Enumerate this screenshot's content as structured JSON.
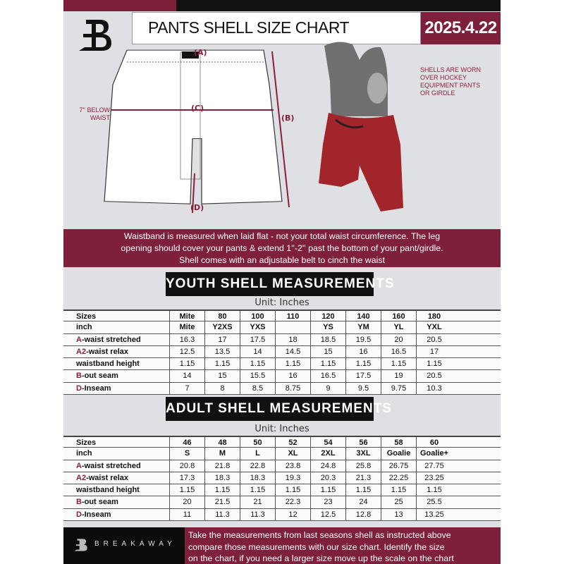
{
  "header": {
    "title": "PANTS SHELL SIZE CHART",
    "date": "2025.4.22"
  },
  "diagram": {
    "label_a": "(A)",
    "label_b": "(B)",
    "label_c": "(C)",
    "label_d": "(D)",
    "c_note_1": "7'' BELOW",
    "c_note_2": "WAIST",
    "side_note": [
      "SHELLS ARE WORN",
      "OVER HOCKEY",
      "EQUIPMENT PANTS",
      "OR GIRDLE"
    ]
  },
  "banner": [
    "Waistband is measured when laid flat - not your total waist circumference. The leg",
    "opening should cover your pants & extend 1''-2'' past the bottom of your pant/girdle.",
    "Shell comes with an adjustable belt to cinch the waist"
  ],
  "youth": {
    "heading": "YOUTH SHELL MEASUREMENTS",
    "unit": "Unit: Inches",
    "rows": [
      {
        "prefix": "",
        "label": "Sizes",
        "cells": [
          "Mite",
          "80",
          "100",
          "110",
          "120",
          "140",
          "160",
          "180"
        ]
      },
      {
        "prefix": "",
        "label": "inch",
        "cells": [
          "Mite",
          "Y2XS",
          "YXS",
          "",
          "YS",
          "YM",
          "YL",
          "YXL"
        ]
      },
      {
        "prefix": "A",
        "label": "-waist stretched",
        "cells": [
          "16.3",
          "17",
          "17.5",
          "18",
          "18.5",
          "19.5",
          "20",
          "20.5"
        ]
      },
      {
        "prefix": "A2",
        "label": "-waist relax",
        "cells": [
          "12.5",
          "13.5",
          "14",
          "14.5",
          "15",
          "16",
          "16.5",
          "17"
        ]
      },
      {
        "prefix": "",
        "label": "waistband height",
        "cells": [
          "1.15",
          "1.15",
          "1.15",
          "1.15",
          "1.15",
          "1.15",
          "1.15",
          "1.15"
        ]
      },
      {
        "prefix": "B",
        "label": "-out seam",
        "cells": [
          "14",
          "15",
          "15.5",
          "16",
          "16.5",
          "17.5",
          "19",
          "20.5"
        ]
      },
      {
        "prefix": "D",
        "label": "-Inseam",
        "cells": [
          "7",
          "8",
          "8.5",
          "8.75",
          "9",
          "9.5",
          "9.75",
          "10.3"
        ]
      }
    ]
  },
  "adult": {
    "heading": "ADULT SHELL MEASUREMENTS",
    "unit": "Unit: Inches",
    "rows": [
      {
        "prefix": "",
        "label": "Sizes",
        "cells": [
          "46",
          "48",
          "50",
          "52",
          "54",
          "56",
          "58",
          "60"
        ]
      },
      {
        "prefix": "",
        "label": "inch",
        "cells": [
          "S",
          "M",
          "L",
          "XL",
          "2XL",
          "3XL",
          "Goalie",
          "Goalie+"
        ]
      },
      {
        "prefix": "A",
        "label": "-waist stretched",
        "cells": [
          "20.8",
          "21.8",
          "22.8",
          "23.8",
          "24.8",
          "25.8",
          "26.75",
          "27.75"
        ]
      },
      {
        "prefix": "A2",
        "label": "-waist relax",
        "cells": [
          "17.3",
          "18.3",
          "18.3",
          "19.3",
          "20.3",
          "21.3",
          "22.25",
          "23.25"
        ]
      },
      {
        "prefix": "",
        "label": "waistband height",
        "cells": [
          "1.15",
          "1.15",
          "1.15",
          "1.15",
          "1.15",
          "1.15",
          "1.15",
          "1.15"
        ]
      },
      {
        "prefix": "B",
        "label": "-out seam",
        "cells": [
          "20",
          "21.5",
          "21",
          "22.3",
          "23",
          "24",
          "25",
          "25.5"
        ]
      },
      {
        "prefix": "D",
        "label": "-Inseam",
        "cells": [
          "11",
          "11.3",
          "11.3",
          "12",
          "12.5",
          "12.8",
          "13",
          "13.25"
        ]
      }
    ]
  },
  "footer": {
    "brand": "BREAKAWAY",
    "text": [
      "Take the measurements from last seasons shell as instructed above",
      "compare those measurements  with our size chart. Identify the size",
      "on the chart, if you need a larger size move up the scale on the chart"
    ]
  },
  "colors": {
    "accent": "#7e1f3b",
    "background": "#dfe0e4",
    "dark": "#111111"
  },
  "icons": {
    "logo": "breakaway-b-logo"
  }
}
